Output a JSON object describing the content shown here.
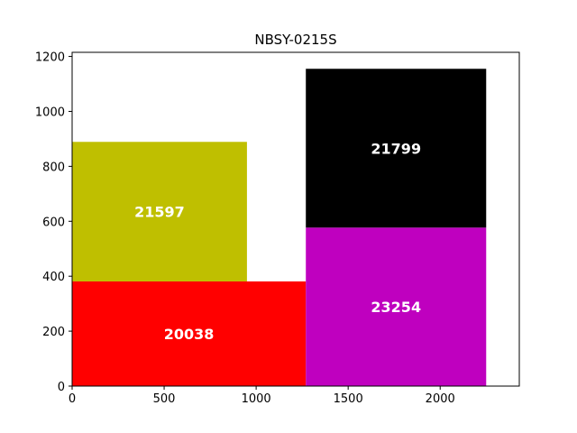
{
  "chart_data": {
    "type": "rectangles",
    "title": "NBSY-0215S",
    "xlabel": "",
    "ylabel": "",
    "xlim": [
      0,
      2430
    ],
    "ylim": [
      0,
      1215
    ],
    "x_ticks": [
      0,
      500,
      1000,
      1500,
      2000
    ],
    "y_ticks": [
      0,
      200,
      400,
      600,
      800,
      1000,
      1200
    ],
    "grid": false,
    "rectangles": [
      {
        "label": "20038",
        "x0": 0,
        "y0": 0,
        "x1": 1270,
        "y1": 381,
        "color": "#ff0000"
      },
      {
        "label": "21597",
        "x0": 0,
        "y0": 381,
        "x1": 950,
        "y1": 889,
        "color": "#bfbf00"
      },
      {
        "label": "23254",
        "x0": 1270,
        "y0": 0,
        "x1": 2250,
        "y1": 577,
        "color": "#bf00bf"
      },
      {
        "label": "21799",
        "x0": 1270,
        "y0": 577,
        "x1": 2250,
        "y1": 1155,
        "color": "#000000"
      }
    ]
  }
}
